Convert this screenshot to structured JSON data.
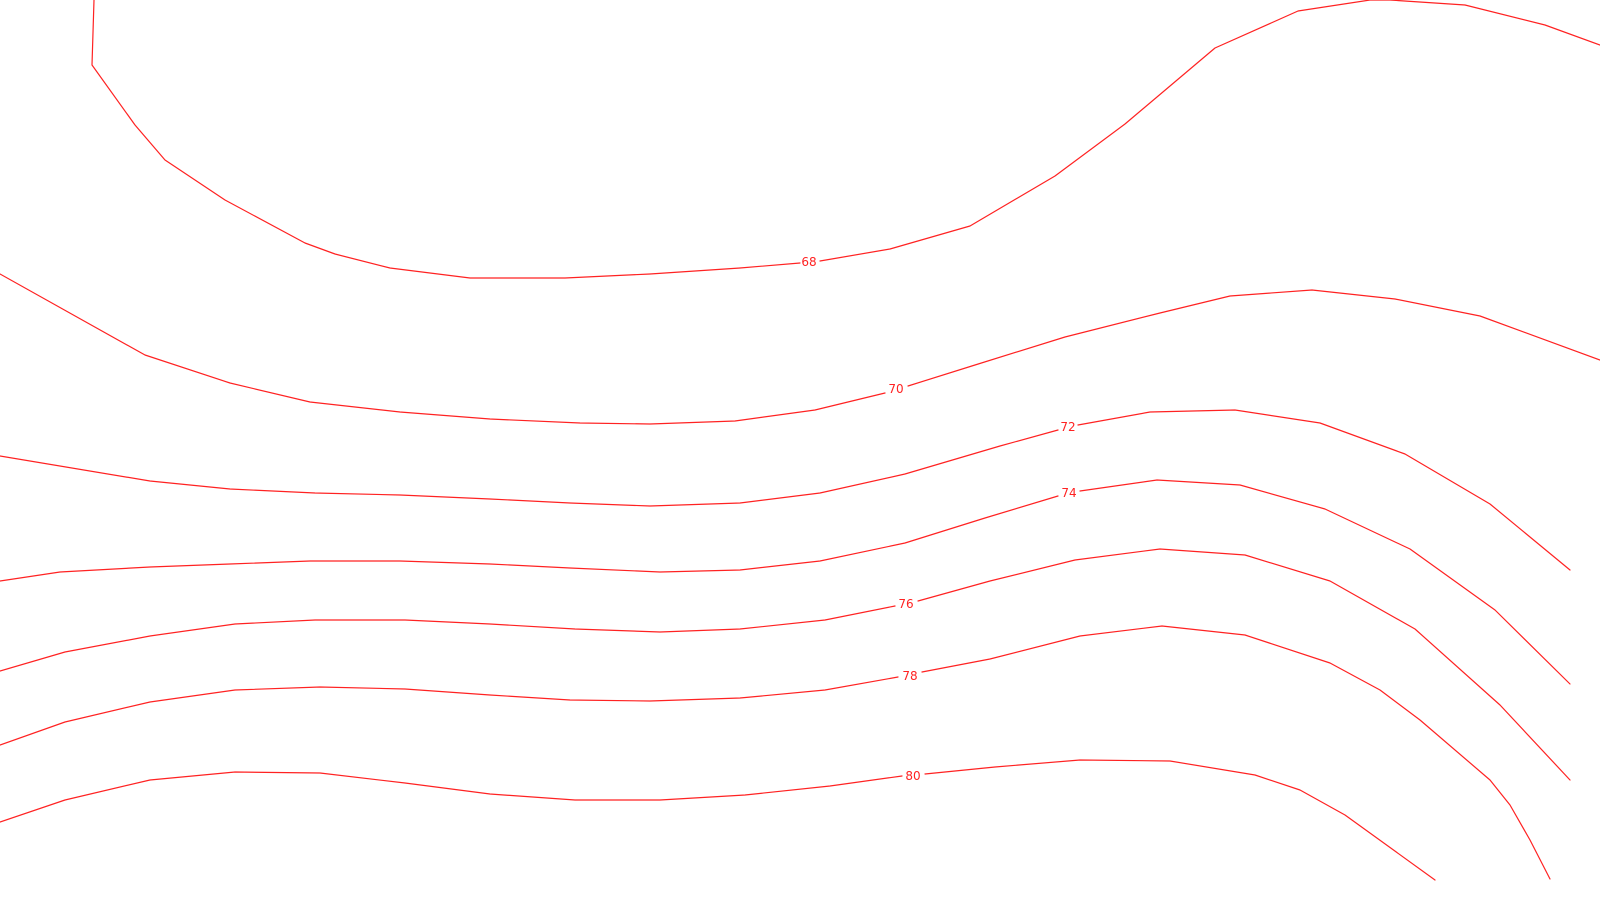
{
  "map": {
    "background_color": "#ffffff",
    "line_color": "#ff2222",
    "label_color": "#ff2222",
    "contours": [
      {
        "elevation": "68"
      },
      {
        "elevation": "70"
      },
      {
        "elevation": "72"
      },
      {
        "elevation": "74"
      },
      {
        "elevation": "76"
      },
      {
        "elevation": "78"
      },
      {
        "elevation": "80"
      }
    ]
  }
}
